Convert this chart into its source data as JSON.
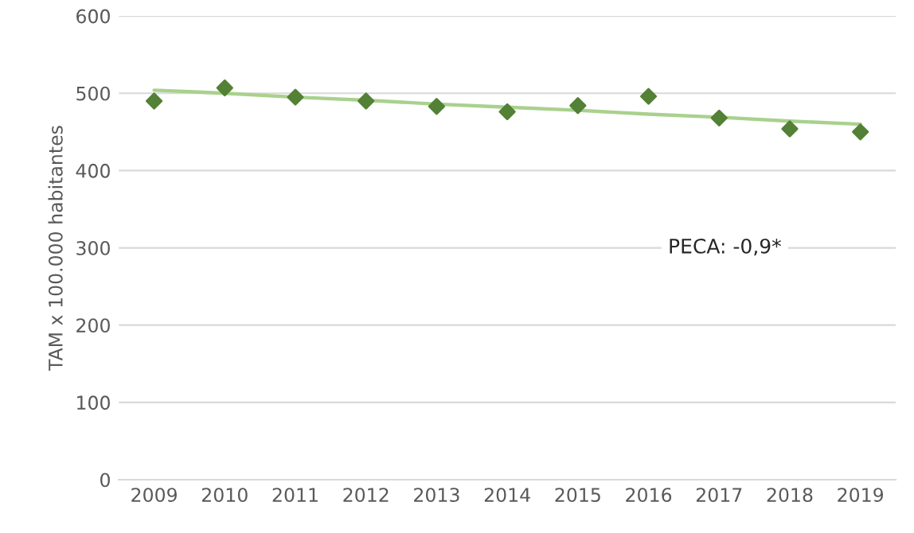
{
  "chart_data": {
    "type": "scatter",
    "ylabel": "TAM x 100.000 habitantes",
    "categories": [
      "2009",
      "2010",
      "2011",
      "2012",
      "2013",
      "2014",
      "2015",
      "2016",
      "2017",
      "2018",
      "2019"
    ],
    "series": [
      {
        "color": "#538135",
        "marker": "diamond",
        "values": [
          490,
          507,
          495,
          490,
          483,
          476,
          484,
          496,
          468,
          454,
          450
        ]
      },
      {
        "type": "line",
        "color": "#a9d18e",
        "values": [
          504,
          500,
          495,
          491,
          486,
          482,
          478,
          473,
          469,
          464,
          460
        ],
        "marker": "none",
        "line_style": "solid"
      }
    ],
    "ylim": [
      0,
      600
    ],
    "yticks": [
      0,
      100,
      200,
      300,
      400,
      500,
      600
    ],
    "grid": "y",
    "legend": false,
    "annotations": [
      {
        "text": "PECA: -0,9*"
      }
    ]
  }
}
